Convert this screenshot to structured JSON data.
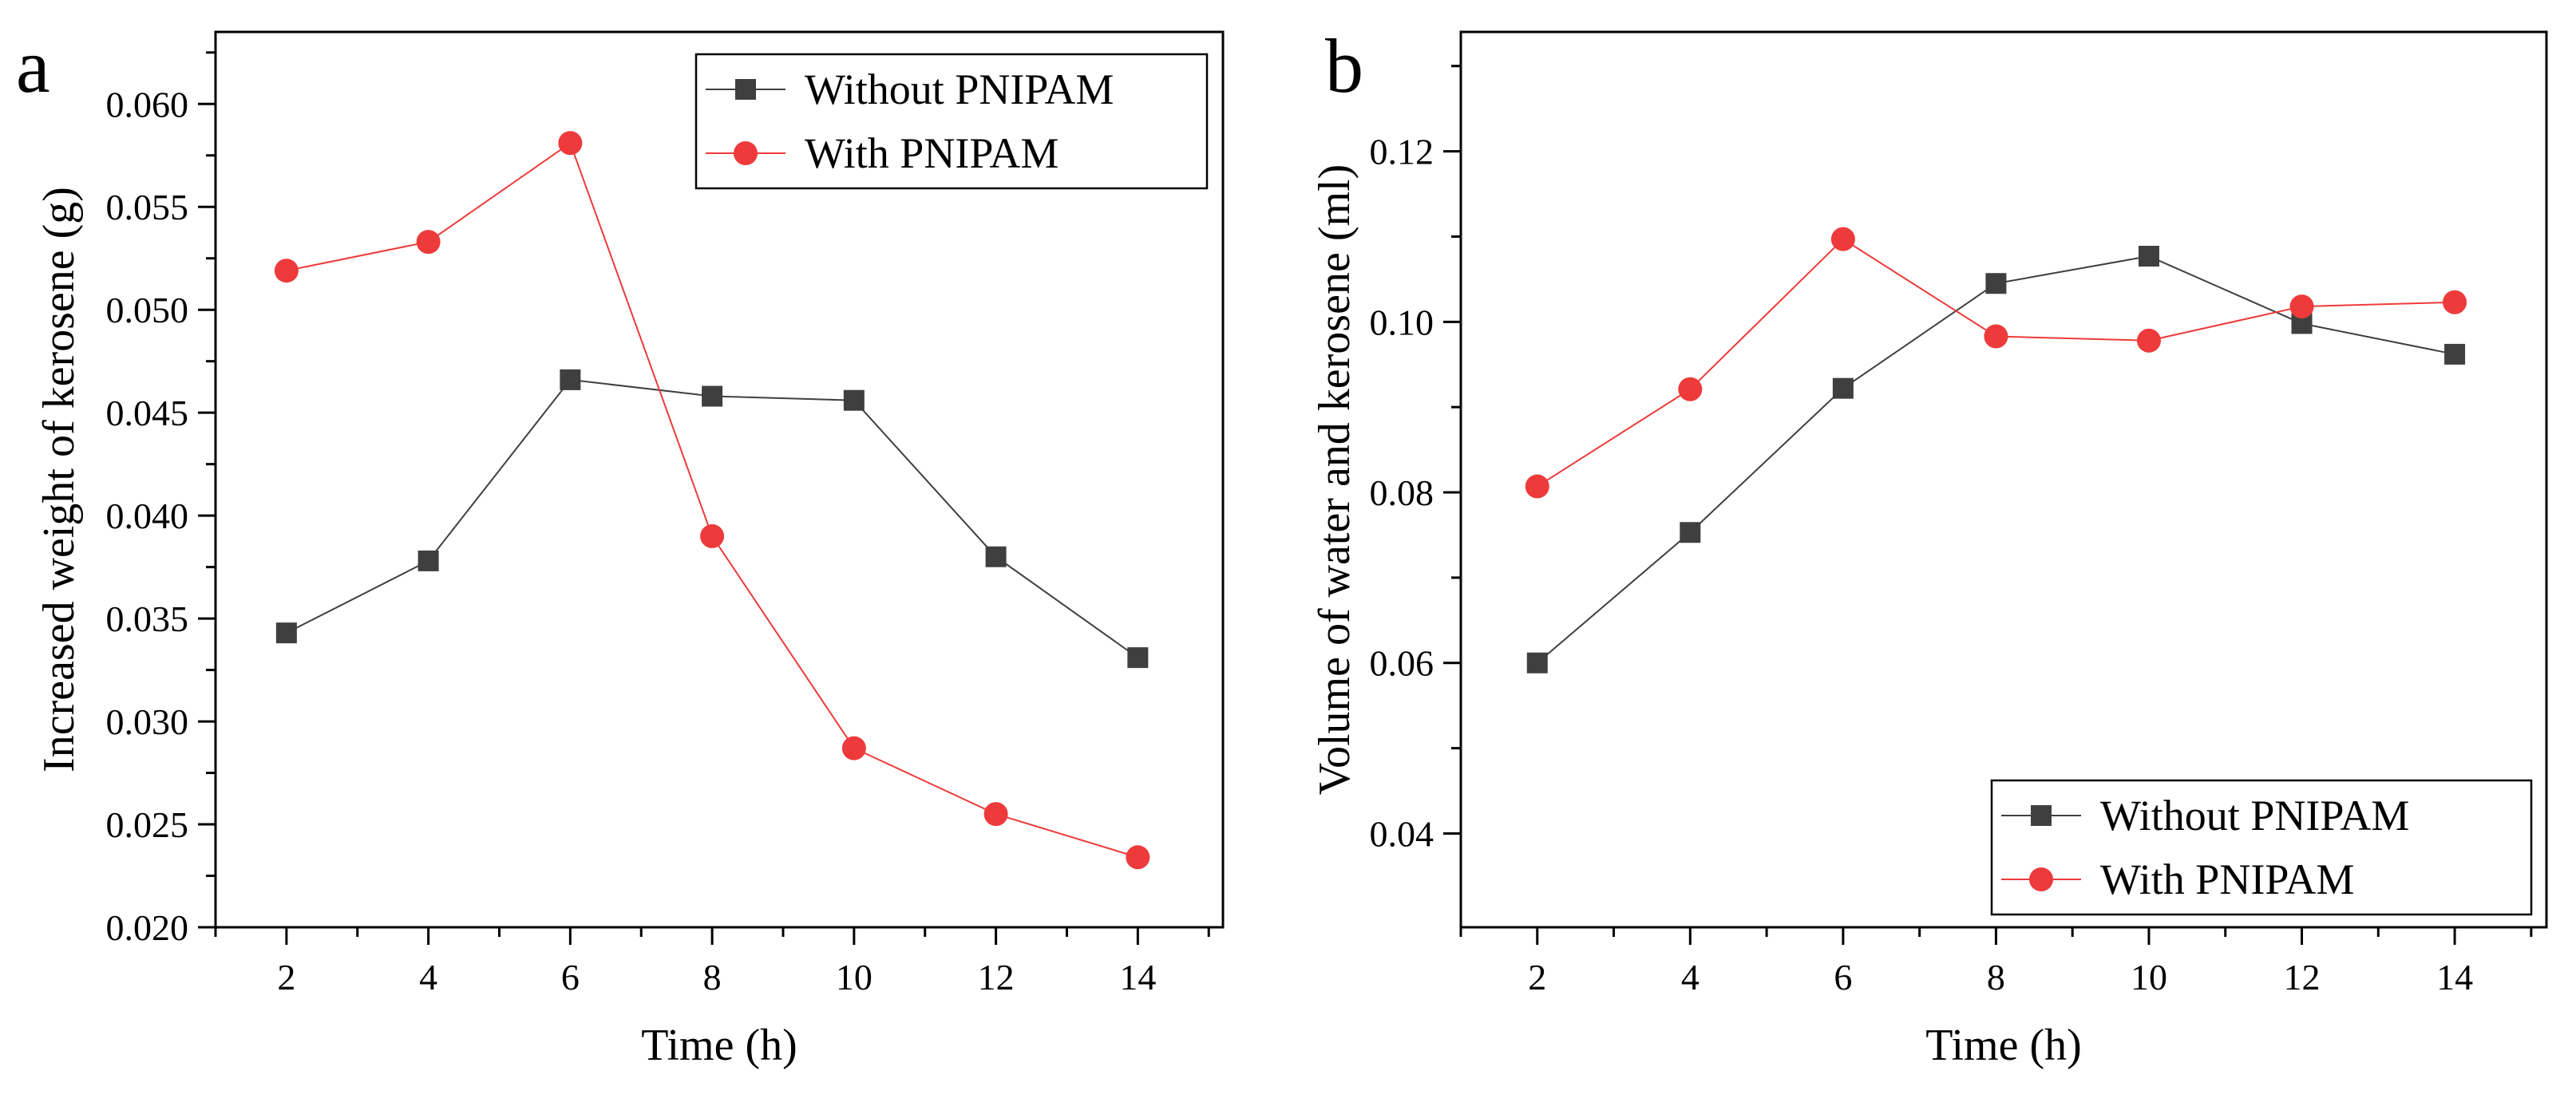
{
  "chart_data": [
    {
      "type": "line",
      "panel_label": "a",
      "xlabel": "Time (h)",
      "ylabel": "Increased weight of kerosene (g)",
      "xlim": [
        1,
        15.2
      ],
      "ylim": [
        0.02,
        0.0635
      ],
      "x_ticks": [
        2,
        4,
        6,
        8,
        10,
        12,
        14
      ],
      "x_tick_labels": [
        "2",
        "4",
        "6",
        "8",
        "10",
        "12",
        "14"
      ],
      "y_ticks": [
        0.02,
        0.025,
        0.03,
        0.035,
        0.04,
        0.045,
        0.05,
        0.055,
        0.06
      ],
      "y_tick_labels": [
        "0.020",
        "0.025",
        "0.030",
        "0.035",
        "0.040",
        "0.045",
        "0.050",
        "0.055",
        "0.060"
      ],
      "legend_position": "top-right",
      "grid": false,
      "x": [
        2,
        4,
        6,
        8,
        10,
        12,
        14
      ],
      "series": [
        {
          "name": "Without PNIPAM",
          "marker": "square",
          "color": "#3f3f3f",
          "values": [
            0.0343,
            0.0378,
            0.0466,
            0.0458,
            0.0456,
            0.038,
            0.0331
          ]
        },
        {
          "name": "With PNIPAM",
          "marker": "circle",
          "color": "#ee3a3a",
          "values": [
            0.0519,
            0.0533,
            0.0581,
            0.039,
            0.0287,
            0.0255,
            0.0234
          ]
        }
      ]
    },
    {
      "type": "line",
      "panel_label": "b",
      "xlabel": "Time (h)",
      "ylabel": "Volume of water and kerosene (ml)",
      "xlim": [
        1,
        15.2
      ],
      "ylim": [
        0.029,
        0.134
      ],
      "x_ticks": [
        2,
        4,
        6,
        8,
        10,
        12,
        14
      ],
      "x_tick_labels": [
        "2",
        "4",
        "6",
        "8",
        "10",
        "12",
        "14"
      ],
      "y_ticks": [
        0.04,
        0.06,
        0.08,
        0.1,
        0.12
      ],
      "y_tick_labels": [
        "0.04",
        "0.06",
        "0.08",
        "0.10",
        "0.12"
      ],
      "legend_position": "bottom-right",
      "grid": false,
      "x": [
        2,
        4,
        6,
        8,
        10,
        12,
        14
      ],
      "series": [
        {
          "name": "Without PNIPAM",
          "marker": "square",
          "color": "#3f3f3f",
          "values": [
            0.06,
            0.0753,
            0.0922,
            0.1045,
            0.1077,
            0.0998,
            0.0962
          ]
        },
        {
          "name": "With PNIPAM",
          "marker": "circle",
          "color": "#ee3a3a",
          "values": [
            0.0807,
            0.0921,
            0.1097,
            0.0983,
            0.0978,
            0.1018,
            0.1023
          ]
        }
      ]
    }
  ]
}
